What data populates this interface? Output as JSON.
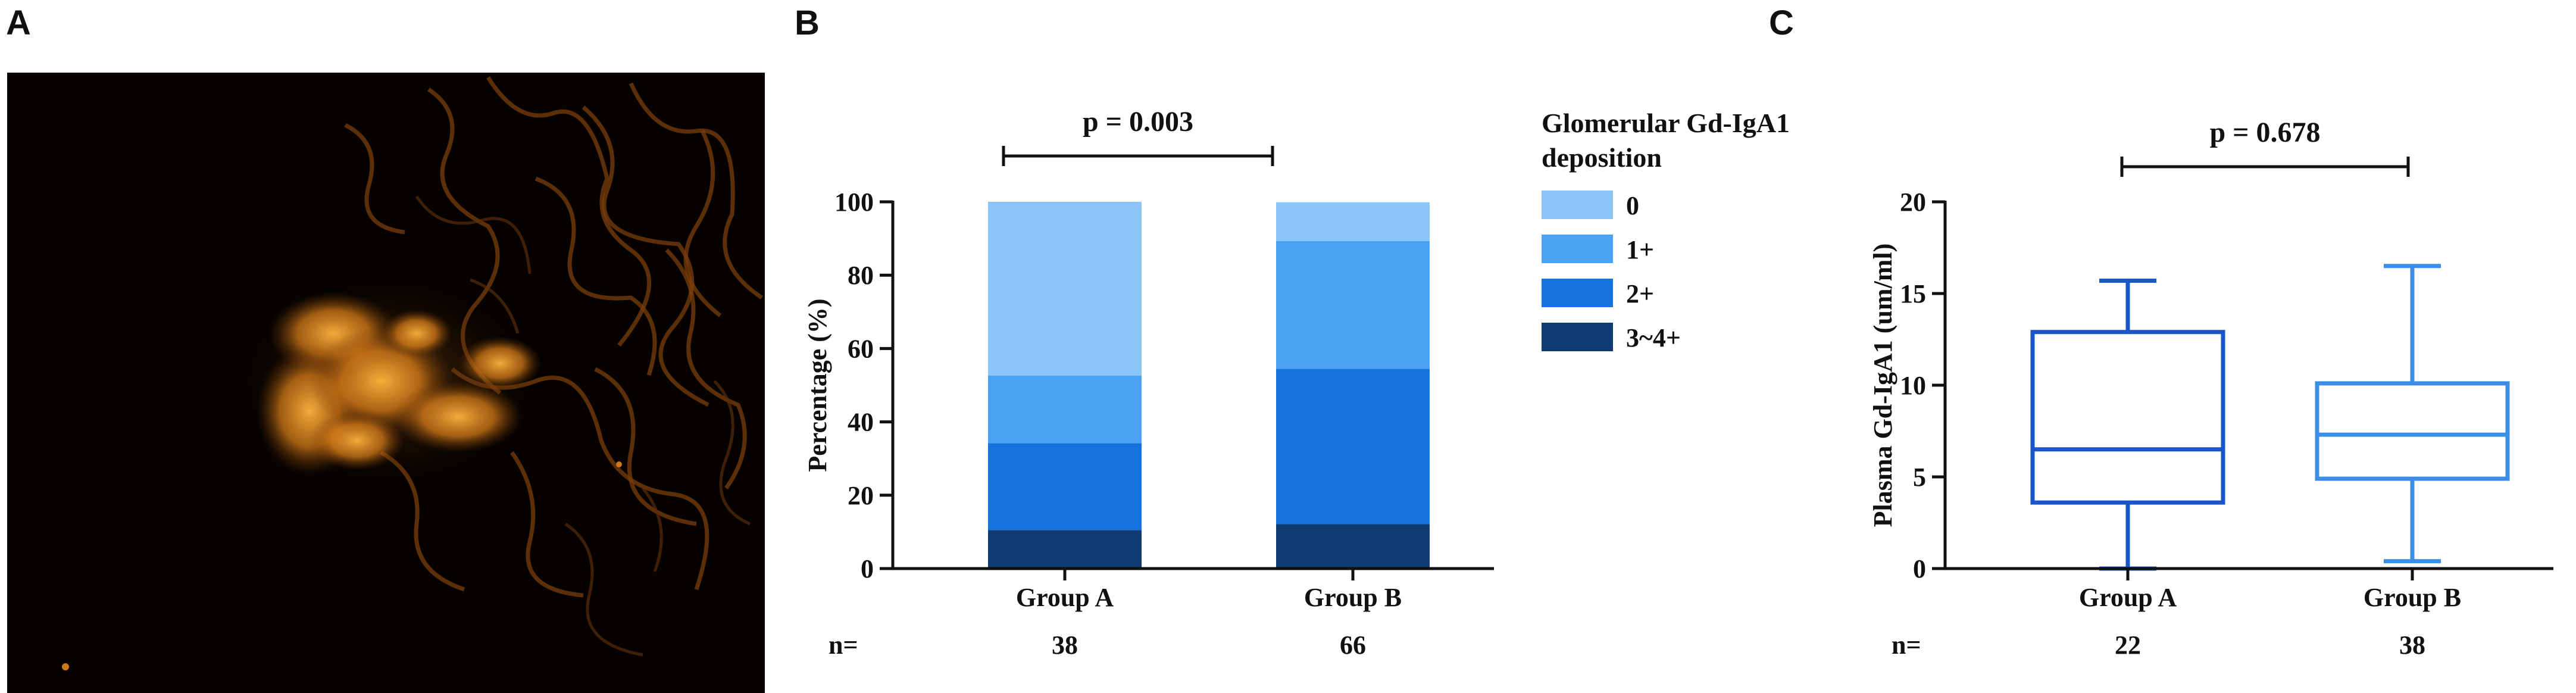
{
  "panels": {
    "a": {
      "letter": "A"
    },
    "b": {
      "letter": "B"
    },
    "c": {
      "letter": "C"
    }
  },
  "n_label": "n=",
  "colors": {
    "grade_0": "#8cc5f8",
    "grade_1": "#4aa3f2",
    "grade_2": "#1673de",
    "grade_34": "#0d3b72",
    "box_a": "#1a56c8",
    "box_b": "#3a8ee8",
    "fluorescence": "#e08a1e"
  },
  "chart_data": [
    {
      "type": "bar",
      "stacked": true,
      "categories": [
        "Group A",
        "Group B"
      ],
      "n": [
        "38",
        "66"
      ],
      "ylabel": "Percentage (%)",
      "xlabel": "",
      "ylim": [
        0,
        100
      ],
      "yticks": [
        "0",
        "20",
        "40",
        "60",
        "80",
        "100"
      ],
      "legend_title": [
        "Glomerular Gd-IgA1",
        "deposition"
      ],
      "legend_position": "right",
      "pvalue": "p = 0.003",
      "series": [
        {
          "name": "3~4+",
          "values": [
            10.5,
            12.1
          ]
        },
        {
          "name": "2+",
          "values": [
            23.7,
            42.4
          ]
        },
        {
          "name": "1+",
          "values": [
            18.4,
            34.8
          ]
        },
        {
          "name": "0",
          "values": [
            47.4,
            10.6
          ]
        }
      ]
    },
    {
      "type": "box",
      "categories": [
        "Group A",
        "Group B"
      ],
      "n": [
        "22",
        "38"
      ],
      "ylabel": "Plasma Gd-IgA1 (um/ml)",
      "xlabel": "",
      "ylim": [
        0,
        20
      ],
      "yticks": [
        "0",
        "5",
        "10",
        "15",
        "20"
      ],
      "pvalue": "p = 0.678",
      "boxes": [
        {
          "min": 0.0,
          "q1": 3.6,
          "median": 6.5,
          "q3": 12.9,
          "max": 15.7
        },
        {
          "min": 0.4,
          "q1": 4.9,
          "median": 7.3,
          "q3": 10.1,
          "max": 16.5
        }
      ]
    }
  ]
}
